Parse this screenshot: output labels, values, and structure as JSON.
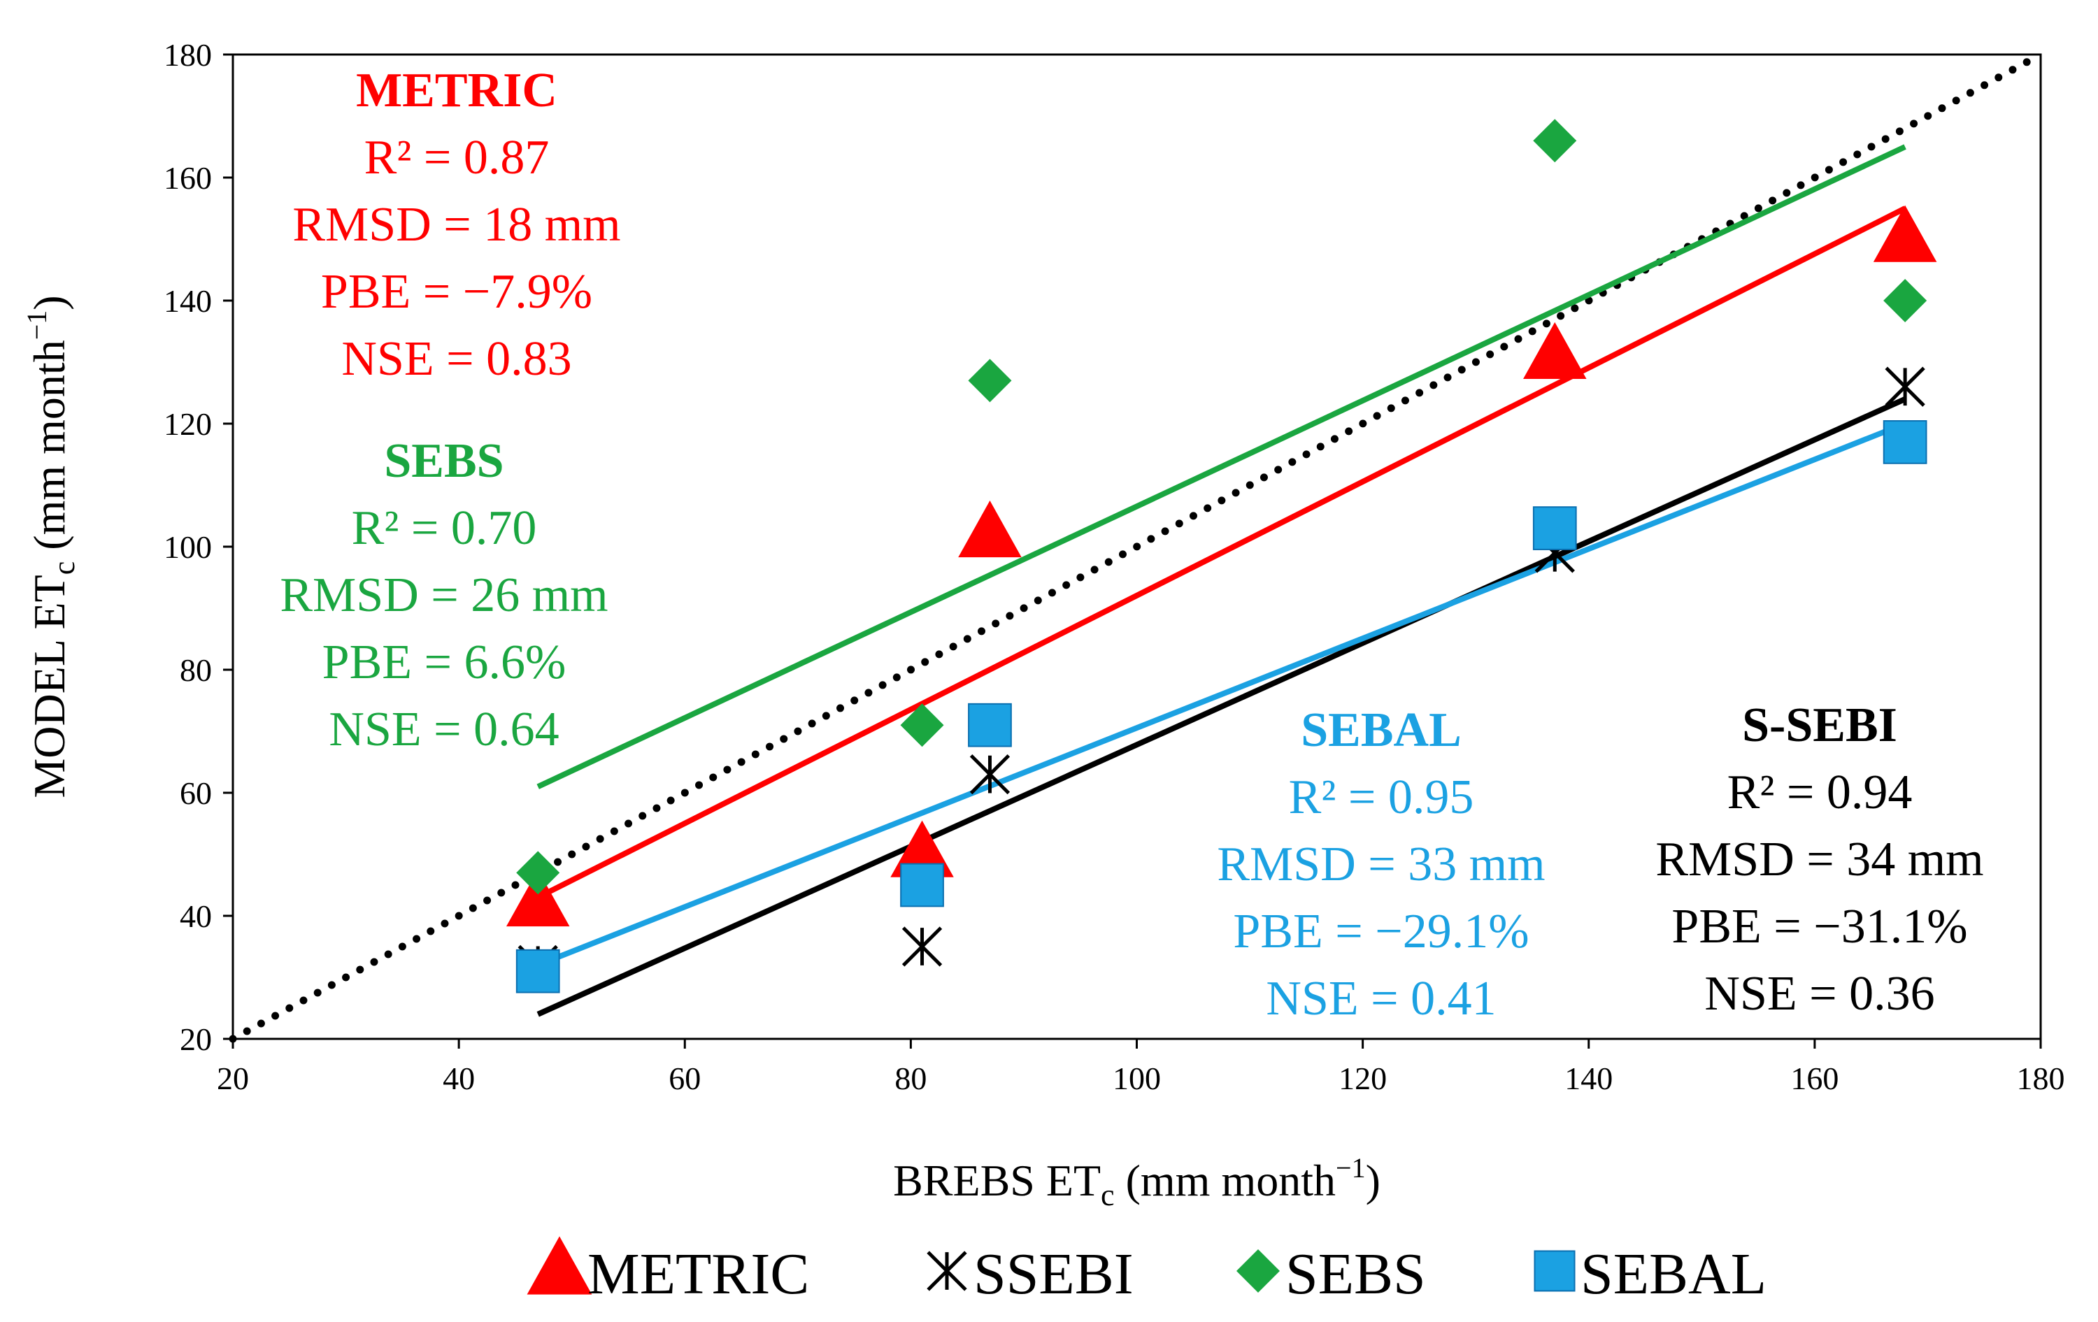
{
  "chart_data": {
    "type": "scatter",
    "xlabel": "BREBS ET",
    "xlabel_sub": "c",
    "xlabel_unit": " (mm month",
    "xlabel_sup": "−1",
    "xlabel_end": ")",
    "ylabel": "MODEL  ET",
    "ylabel_sub": "c",
    "ylabel_unit": " (mm month",
    "ylabel_sup": "−1",
    "ylabel_end": ")",
    "xlim": [
      20,
      180
    ],
    "ylim": [
      20,
      180
    ],
    "xticks": [
      20,
      40,
      60,
      80,
      100,
      120,
      140,
      160,
      180
    ],
    "yticks": [
      20,
      40,
      60,
      80,
      100,
      120,
      140,
      160,
      180
    ],
    "one_to_one": {
      "x": [
        20,
        180
      ],
      "y": [
        20,
        180
      ],
      "color": "#000000",
      "style": "dotted"
    },
    "series": [
      {
        "name": "METRIC",
        "marker": "triangle",
        "color": "#ff0000",
        "points": [
          [
            47,
            42
          ],
          [
            81,
            50
          ],
          [
            87,
            102
          ],
          [
            137,
            131
          ],
          [
            168,
            150
          ]
        ],
        "trendline": {
          "x": [
            47,
            168
          ],
          "y": [
            43,
            155
          ]
        }
      },
      {
        "name": "SSEBI",
        "marker": "asterisk",
        "color": "#000000",
        "points": [
          [
            47,
            32
          ],
          [
            81,
            35
          ],
          [
            87,
            63
          ],
          [
            137,
            99
          ],
          [
            168,
            126
          ]
        ],
        "trendline": {
          "x": [
            47,
            168
          ],
          "y": [
            24,
            124
          ]
        }
      },
      {
        "name": "SEBS",
        "marker": "diamond",
        "color": "#1aa640",
        "points": [
          [
            47,
            47
          ],
          [
            81,
            71
          ],
          [
            87,
            127
          ],
          [
            137,
            166
          ],
          [
            168,
            140
          ]
        ],
        "trendline": {
          "x": [
            47,
            168
          ],
          "y": [
            61,
            165
          ]
        }
      },
      {
        "name": "SEBAL",
        "marker": "square",
        "color": "#1ba1e2",
        "points": [
          [
            47,
            31
          ],
          [
            81,
            45
          ],
          [
            87,
            71
          ],
          [
            137,
            103
          ],
          [
            168,
            117
          ]
        ],
        "trendline": {
          "x": [
            47,
            168
          ],
          "y": [
            32,
            120
          ]
        }
      }
    ],
    "annotations": [
      {
        "model": "metric",
        "color": "#ff0000",
        "title": "METRIC",
        "lines": [
          "R² = 0.87",
          "RMSD = 18 mm",
          "PBE = −7.9%",
          "NSE = 0.83"
        ]
      },
      {
        "model": "sebs",
        "color": "#1aa640",
        "title": "SEBS",
        "lines": [
          "R² = 0.70",
          "RMSD = 26 mm",
          "PBE = 6.6%",
          "NSE = 0.64"
        ]
      },
      {
        "model": "sebal",
        "color": "#1ba1e2",
        "title": "SEBAL",
        "lines": [
          "R² = 0.95",
          "RMSD = 33 mm",
          "PBE = −29.1%",
          "NSE = 0.41"
        ]
      },
      {
        "model": "ssebi",
        "color": "#000000",
        "title": "S-SEBI",
        "lines": [
          "R² = 0.94",
          "RMSD = 34 mm",
          "PBE = −31.1%",
          "NSE = 0.36"
        ]
      }
    ],
    "legend": [
      "METRIC",
      "SSEBI",
      "SEBS",
      "SEBAL"
    ],
    "legend_position": "bottom"
  }
}
